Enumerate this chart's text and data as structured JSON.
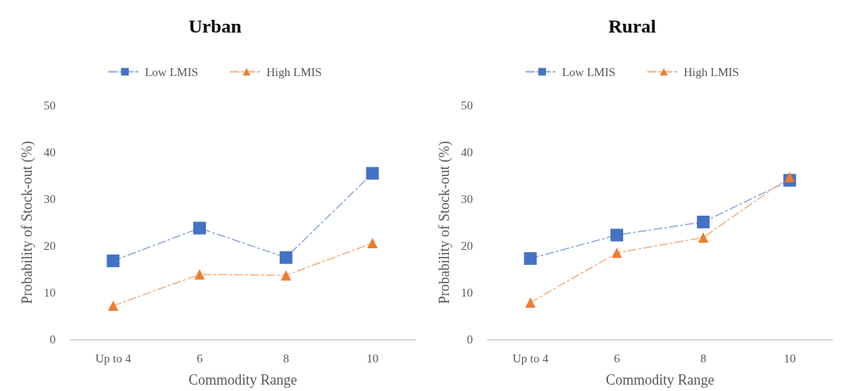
{
  "chart_data": [
    {
      "type": "line",
      "title": "Urban",
      "xlabel": "Commodity Range",
      "ylabel": "Probability of Stock-out (%)",
      "categories": [
        "Up to 4",
        "6",
        "8",
        "10"
      ],
      "series": [
        {
          "name": "Low LMIS",
          "color": "#4472c4",
          "marker": "square",
          "values": [
            16.8,
            23.8,
            17.5,
            35.5
          ]
        },
        {
          "name": "High LMIS",
          "color": "#ed7d31",
          "marker": "triangle",
          "values": [
            7.2,
            13.9,
            13.7,
            20.6
          ]
        }
      ],
      "ylim": [
        0,
        50
      ],
      "yticks": [
        0,
        10,
        20,
        30,
        40,
        50
      ],
      "grid": false,
      "legend": "top",
      "line_style": "dashed"
    },
    {
      "type": "line",
      "title": "Rural",
      "xlabel": "Commodity Range",
      "ylabel": "Probability of Stock-out (%)",
      "categories": [
        "Up to 4",
        "6",
        "8",
        "10"
      ],
      "series": [
        {
          "name": "Low LMIS",
          "color": "#4472c4",
          "marker": "square",
          "values": [
            17.3,
            22.3,
            25.1,
            34.0
          ]
        },
        {
          "name": "High LMIS",
          "color": "#ed7d31",
          "marker": "triangle",
          "values": [
            7.9,
            18.5,
            21.8,
            34.7
          ]
        }
      ],
      "ylim": [
        0,
        50
      ],
      "yticks": [
        0,
        10,
        20,
        30,
        40,
        50
      ],
      "grid": false,
      "legend": "top",
      "line_style": "dashed"
    }
  ]
}
